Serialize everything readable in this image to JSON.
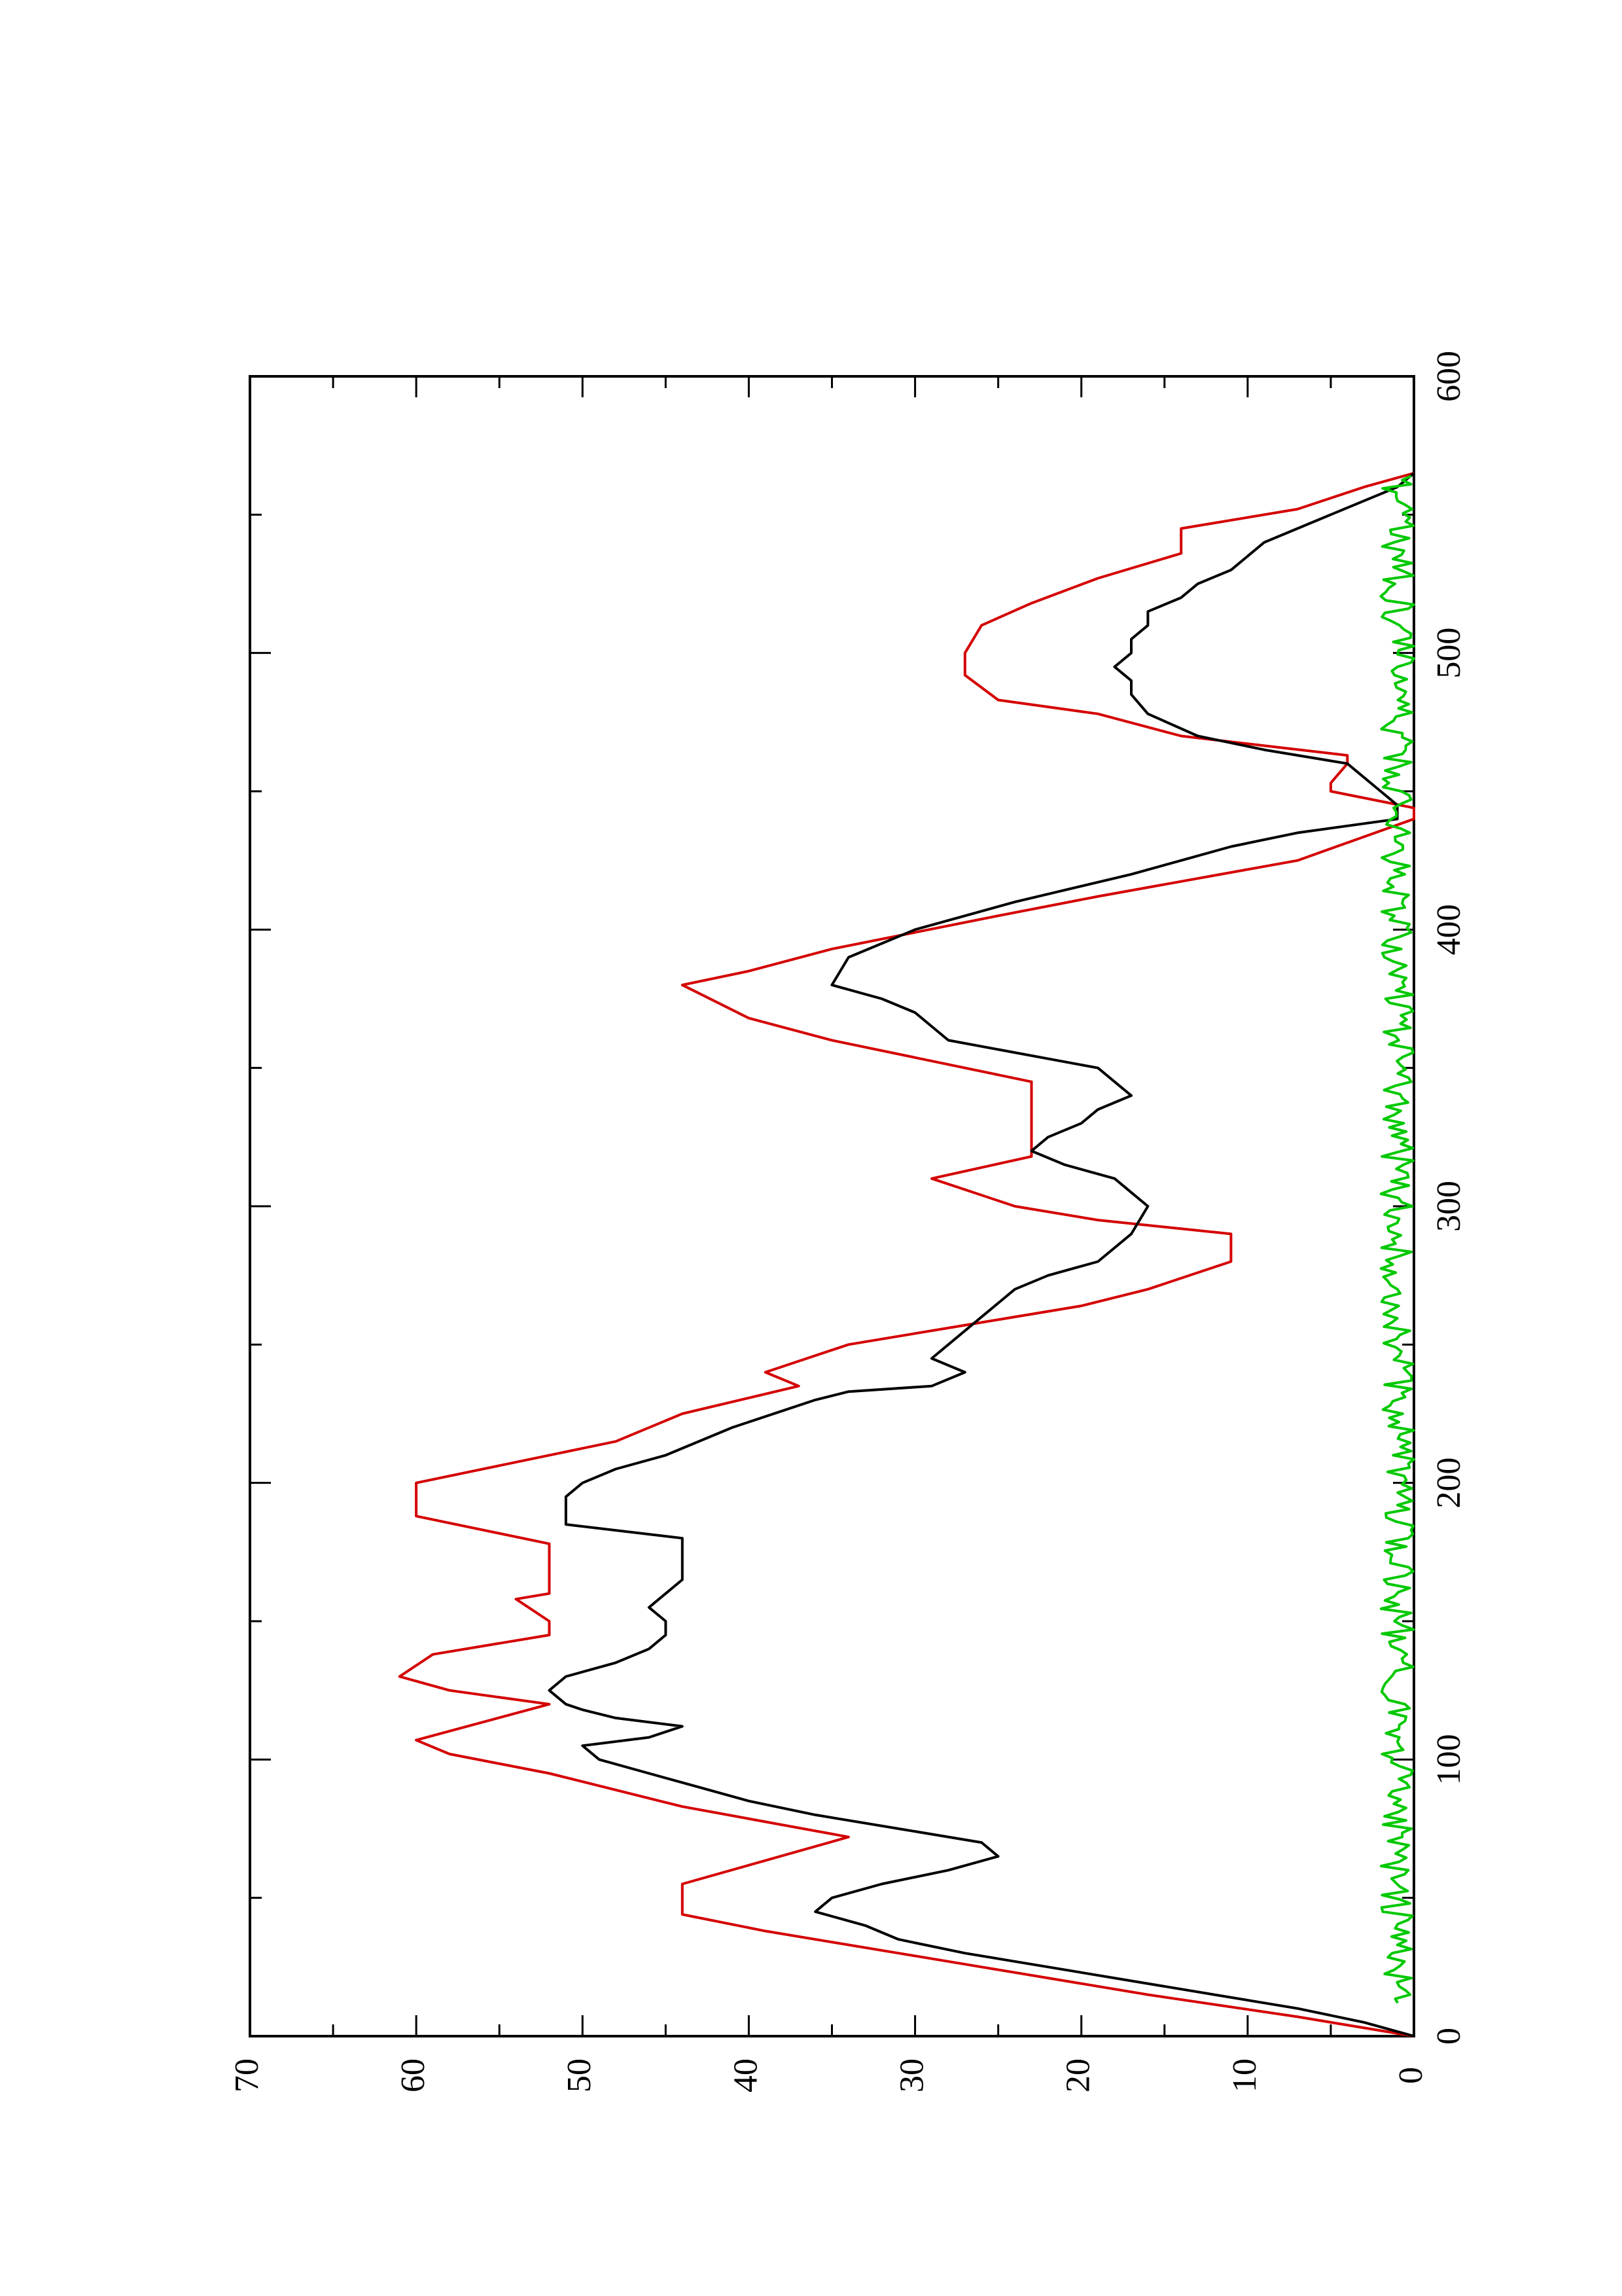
{
  "chart_data": {
    "type": "line",
    "orientation": "rotated 90 degrees counter-clockwise (x axis runs vertically along the right side, y axis runs horizontally along the bottom)",
    "title": "",
    "xlabel": "",
    "ylabel": "",
    "xlim": [
      0,
      600
    ],
    "ylim": [
      0,
      70
    ],
    "x_ticks": [
      "0",
      "100",
      "200",
      "300",
      "400",
      "500",
      "600"
    ],
    "y_ticks": [
      "0",
      "10",
      "20",
      "30",
      "40",
      "50",
      "60",
      "70"
    ],
    "grid": false,
    "legend": "none",
    "series": [
      {
        "color": "#d40000",
        "x": [
          0,
          7,
          15,
          25,
          30,
          38,
          44,
          55,
          72,
          83,
          95,
          102,
          107,
          120,
          125,
          130,
          138,
          145,
          150,
          158,
          160,
          165,
          178,
          188,
          200,
          210,
          215,
          225,
          235,
          240,
          250,
          258,
          264,
          270,
          280,
          290,
          295,
          300,
          310,
          318,
          325,
          335,
          345,
          360,
          368,
          380,
          385,
          393,
          405,
          412,
          425,
          440,
          444,
          450,
          453,
          460,
          463,
          470,
          478,
          483,
          492,
          500,
          510,
          518,
          527,
          536,
          545,
          552,
          560,
          565
        ],
        "y": [
          0,
          7,
          16,
          26,
          31,
          39,
          44,
          44,
          34,
          44,
          52,
          58,
          60,
          52,
          58,
          61,
          59,
          52,
          52,
          54,
          52,
          52,
          52,
          60,
          60,
          52,
          48,
          44,
          37,
          39,
          34,
          26,
          20,
          16,
          11,
          11,
          19,
          24,
          29,
          23,
          23,
          23,
          23,
          35,
          40,
          44,
          40,
          35,
          25,
          19,
          7,
          0,
          0,
          5,
          5,
          4,
          4,
          14,
          19,
          25,
          27,
          27,
          26,
          23,
          19,
          14,
          14,
          7,
          3,
          0
        ]
      },
      {
        "color": "#000000",
        "x": [
          0,
          5,
          10,
          15,
          20,
          25,
          30,
          35,
          40,
          45,
          50,
          55,
          60,
          65,
          70,
          75,
          80,
          85,
          90,
          95,
          100,
          105,
          108,
          112,
          115,
          118,
          120,
          125,
          130,
          135,
          140,
          145,
          150,
          155,
          160,
          165,
          170,
          175,
          180,
          185,
          190,
          195,
          200,
          205,
          210,
          220,
          230,
          233,
          235,
          240,
          245,
          250,
          260,
          270,
          275,
          280,
          290,
          300,
          305,
          310,
          315,
          320,
          325,
          330,
          335,
          340,
          345,
          350,
          360,
          370,
          375,
          380,
          390,
          400,
          410,
          420,
          425,
          430,
          435,
          440,
          445,
          450,
          455,
          460,
          465,
          470,
          478,
          485,
          490,
          495,
          500,
          505,
          510,
          515,
          520,
          525,
          530,
          540,
          550,
          560,
          565
        ],
        "y": [
          0,
          3,
          7,
          12,
          17,
          22,
          27,
          31,
          33,
          36,
          35,
          32,
          28,
          25,
          26,
          31,
          36,
          40,
          43,
          46,
          49,
          50,
          46,
          44,
          48,
          50,
          51,
          52,
          51,
          48,
          46,
          45,
          45,
          46,
          45,
          44,
          44,
          44,
          44,
          51,
          51,
          51,
          50,
          48,
          45,
          41,
          36,
          34,
          29,
          27,
          29,
          28,
          26,
          24,
          22,
          19,
          17,
          16,
          17,
          18,
          21,
          23,
          22,
          20,
          19,
          17,
          18,
          19,
          28,
          30,
          32,
          35,
          34,
          30,
          24,
          17,
          14,
          11,
          7,
          1,
          1,
          2,
          3,
          4,
          9,
          13,
          16,
          17,
          17,
          18,
          17,
          17,
          16,
          16,
          14,
          13,
          11,
          9,
          5,
          1,
          0
        ]
      },
      {
        "color": "#00c800",
        "noise_amplitude": 2,
        "x_start": 12,
        "x_end": 565,
        "y_approx": "0 to 2 (noisy baseline)"
      }
    ]
  }
}
